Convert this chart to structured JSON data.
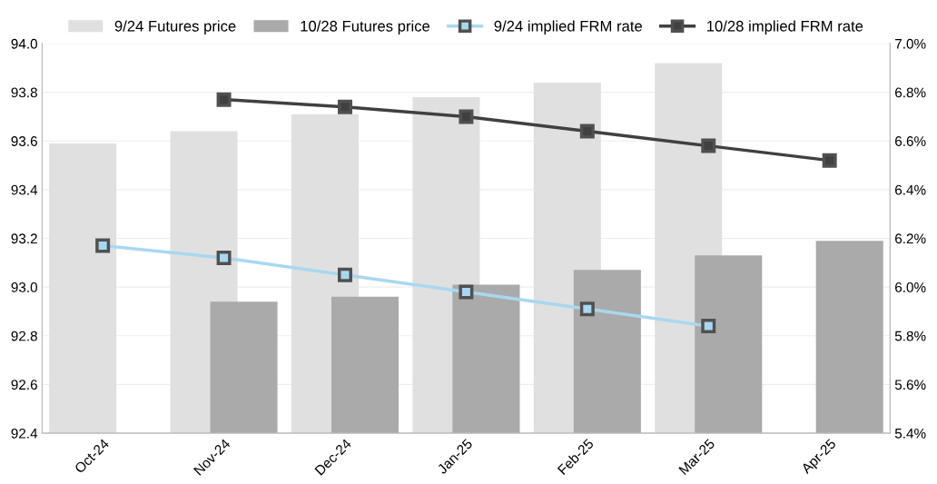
{
  "chart_data": {
    "type": "bar",
    "categories": [
      "Oct-24",
      "Nov-24",
      "Dec-24",
      "Jan-25",
      "Feb-25",
      "Mar-25",
      "Apr-25"
    ],
    "series": [
      {
        "name": "9/24 Futures price",
        "color": "#e0e0e0",
        "values": [
          93.59,
          93.64,
          93.71,
          93.78,
          93.84,
          93.92,
          null
        ]
      },
      {
        "name": "10/28 Futures price",
        "color": "#aaaaaa",
        "values": [
          null,
          92.94,
          92.96,
          93.01,
          93.07,
          93.13,
          93.19
        ]
      },
      {
        "name": "9/24 implied FRM rate",
        "type": "line",
        "axis": "y2",
        "color": "#a8d8f0",
        "values": [
          6.17,
          6.12,
          6.05,
          5.98,
          5.91,
          5.84,
          null
        ]
      },
      {
        "name": "10/28 implied FRM rate",
        "type": "line",
        "axis": "y2",
        "color": "#404040",
        "values": [
          null,
          6.77,
          6.74,
          6.7,
          6.64,
          6.58,
          6.52
        ]
      }
    ],
    "ylim": [
      92.4,
      94.0
    ],
    "yticks": [
      {
        "value": 92.4,
        "label": "92.4"
      },
      {
        "value": 92.6,
        "label": "92.6"
      },
      {
        "value": 92.8,
        "label": "92.8"
      },
      {
        "value": 93.0,
        "label": "93.0"
      },
      {
        "value": 93.2,
        "label": "93.2"
      },
      {
        "value": 93.4,
        "label": "93.4"
      },
      {
        "value": 93.6,
        "label": "93.6"
      },
      {
        "value": 93.8,
        "label": "93.8"
      },
      {
        "value": 94.0,
        "label": "94.0"
      }
    ],
    "y2lim": [
      5.4,
      7.0
    ],
    "y2ticks": [
      {
        "value": 5.4,
        "label": "5.4%"
      },
      {
        "value": 5.6,
        "label": "5.6%"
      },
      {
        "value": 5.8,
        "label": "5.8%"
      },
      {
        "value": 6.0,
        "label": "6.0%"
      },
      {
        "value": 6.2,
        "label": "6.2%"
      },
      {
        "value": 6.4,
        "label": "6.4%"
      },
      {
        "value": 6.6,
        "label": "6.6%"
      },
      {
        "value": 6.8,
        "label": "6.8%"
      },
      {
        "value": 7.0,
        "label": "7.0%"
      }
    ],
    "grid": "y",
    "legend": "top",
    "marker": "square",
    "line_style": "solid"
  }
}
